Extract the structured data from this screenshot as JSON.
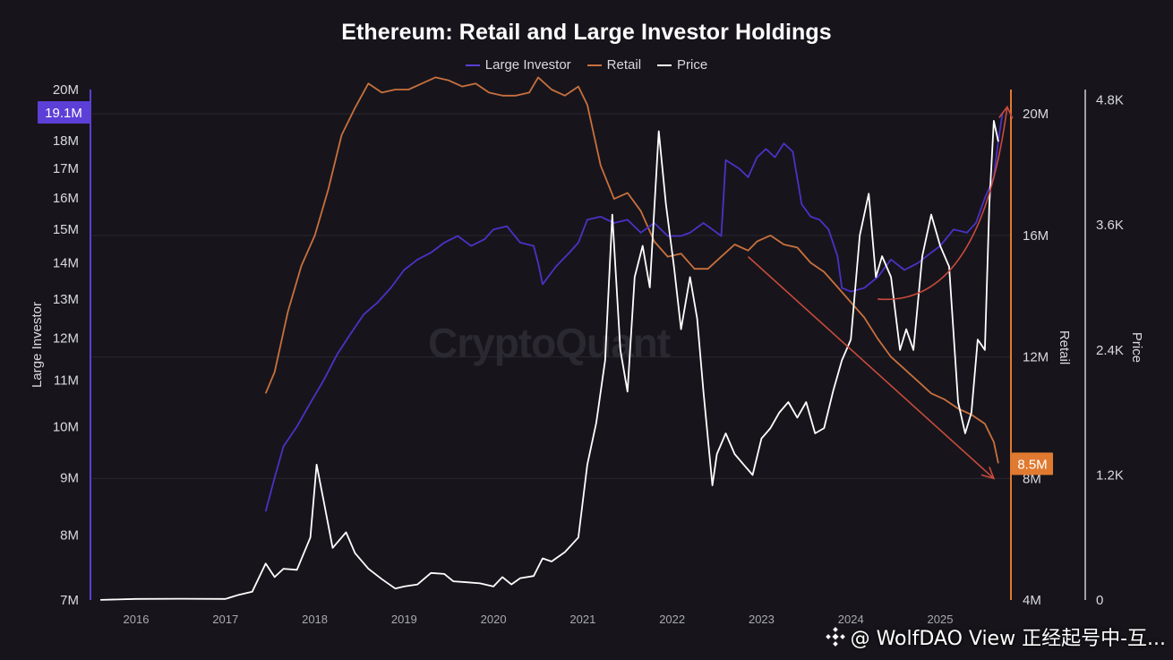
{
  "chart_data": {
    "type": "line",
    "title": "Ethereum: Retail and Large Investor Holdings",
    "legend": [
      {
        "name": "Large Investor",
        "color": "#5b3fd6"
      },
      {
        "name": "Retail",
        "color": "#c8703e"
      },
      {
        "name": "Price",
        "color": "#ffffff"
      }
    ],
    "legend_position": "top-center",
    "watermark": "CryptoQuant",
    "x_ticks": [
      "2016",
      "2017",
      "2018",
      "2019",
      "2020",
      "2021",
      "2022",
      "2023",
      "2024",
      "2025"
    ],
    "axes": {
      "large_investor": {
        "label": "Large Investor",
        "scale": "log",
        "range": [
          7000000,
          20000000
        ],
        "ticks": [
          "7M",
          "8M",
          "9M",
          "10M",
          "11M",
          "12M",
          "13M",
          "14M",
          "15M",
          "16M",
          "17M",
          "18M",
          "20M"
        ],
        "tick_values": [
          7,
          8,
          9,
          10,
          11,
          12,
          13,
          14,
          15,
          16,
          17,
          18,
          20
        ],
        "current_badge": "19.1M",
        "color": "#5b3fd6"
      },
      "retail": {
        "label": "Retail",
        "range": [
          4000000,
          20800000
        ],
        "ticks": [
          "4M",
          "8M",
          "12M",
          "16M",
          "20M"
        ],
        "tick_values": [
          4,
          8,
          12,
          16,
          20
        ],
        "current_badge": "8.5M",
        "color": "#e07a30"
      },
      "price": {
        "label": "Price",
        "range": [
          0,
          4900
        ],
        "ticks": [
          "0",
          "1.2K",
          "2.4K",
          "3.6K",
          "4.8K"
        ],
        "tick_values": [
          0,
          1200,
          2400,
          3600,
          4800
        ]
      }
    },
    "series": [
      {
        "name": "Large Investor",
        "unit": "M",
        "x": [
          2017.45,
          2017.55,
          2017.65,
          2017.8,
          2017.95,
          2018.1,
          2018.25,
          2018.4,
          2018.55,
          2018.7,
          2018.85,
          2019.0,
          2019.15,
          2019.3,
          2019.45,
          2019.6,
          2019.75,
          2019.9,
          2020.0,
          2020.15,
          2020.3,
          2020.45,
          2020.5,
          2020.55,
          2020.7,
          2020.85,
          2020.95,
          2021.05,
          2021.2,
          2021.35,
          2021.5,
          2021.65,
          2021.8,
          2021.95,
          2022.1,
          2022.2,
          2022.35,
          2022.45,
          2022.55,
          2022.6,
          2022.75,
          2022.85,
          2022.95,
          2023.05,
          2023.15,
          2023.25,
          2023.35,
          2023.45,
          2023.55,
          2023.65,
          2023.75,
          2023.85,
          2023.9,
          2024.0,
          2024.15,
          2024.3,
          2024.45,
          2024.6,
          2024.75,
          2024.9,
          2025.0,
          2025.15,
          2025.3,
          2025.4,
          2025.5,
          2025.6,
          2025.65,
          2025.7
        ],
        "values": [
          8.4,
          9.0,
          9.6,
          10.0,
          10.5,
          11.0,
          11.6,
          12.1,
          12.6,
          12.9,
          13.3,
          13.8,
          14.1,
          14.3,
          14.6,
          14.8,
          14.5,
          14.7,
          15.0,
          15.1,
          14.6,
          14.5,
          14.0,
          13.4,
          13.9,
          14.3,
          14.6,
          15.3,
          15.4,
          15.2,
          15.3,
          14.9,
          15.2,
          14.8,
          14.8,
          14.9,
          15.2,
          15.0,
          14.8,
          17.3,
          17.0,
          16.7,
          17.4,
          17.7,
          17.4,
          17.9,
          17.6,
          15.8,
          15.4,
          15.3,
          15.0,
          14.2,
          13.3,
          13.2,
          13.3,
          13.6,
          14.1,
          13.8,
          14.0,
          14.3,
          14.5,
          15.0,
          14.9,
          15.2,
          16.0,
          16.7,
          18.0,
          19.1
        ]
      },
      {
        "name": "Retail",
        "unit": "M",
        "x": [
          2017.45,
          2017.55,
          2017.7,
          2017.85,
          2018.0,
          2018.15,
          2018.3,
          2018.45,
          2018.6,
          2018.75,
          2018.9,
          2019.05,
          2019.2,
          2019.35,
          2019.5,
          2019.65,
          2019.8,
          2019.95,
          2020.1,
          2020.25,
          2020.4,
          2020.5,
          2020.65,
          2020.8,
          2020.95,
          2021.05,
          2021.2,
          2021.35,
          2021.5,
          2021.65,
          2021.8,
          2021.95,
          2022.1,
          2022.25,
          2022.4,
          2022.55,
          2022.7,
          2022.85,
          2022.95,
          2023.1,
          2023.25,
          2023.4,
          2023.55,
          2023.7,
          2023.85,
          2024.0,
          2024.15,
          2024.3,
          2024.45,
          2024.6,
          2024.75,
          2024.9,
          2025.05,
          2025.2,
          2025.35,
          2025.5,
          2025.6,
          2025.65
        ],
        "values": [
          10.8,
          11.5,
          13.5,
          15.0,
          16.0,
          17.5,
          19.3,
          20.2,
          21.0,
          20.7,
          20.8,
          20.8,
          21.0,
          21.2,
          21.1,
          20.9,
          21.0,
          20.7,
          20.6,
          20.6,
          20.7,
          21.2,
          20.8,
          20.6,
          20.9,
          20.3,
          18.3,
          17.2,
          17.4,
          16.8,
          15.8,
          15.3,
          15.4,
          14.9,
          14.9,
          15.3,
          15.7,
          15.5,
          15.8,
          16.0,
          15.7,
          15.6,
          15.1,
          14.8,
          14.3,
          13.8,
          13.3,
          12.6,
          12.0,
          11.6,
          11.2,
          10.8,
          10.6,
          10.3,
          10.1,
          9.8,
          9.2,
          8.5
        ]
      },
      {
        "name": "Price",
        "unit": "USD",
        "x": [
          2015.6,
          2016.0,
          2016.5,
          2017.0,
          2017.15,
          2017.3,
          2017.45,
          2017.55,
          2017.65,
          2017.8,
          2017.95,
          2018.02,
          2018.1,
          2018.2,
          2018.3,
          2018.35,
          2018.45,
          2018.6,
          2018.75,
          2018.9,
          2019.0,
          2019.15,
          2019.3,
          2019.45,
          2019.55,
          2019.7,
          2019.85,
          2020.0,
          2020.1,
          2020.2,
          2020.3,
          2020.45,
          2020.55,
          2020.65,
          2020.8,
          2020.95,
          2021.05,
          2021.15,
          2021.25,
          2021.33,
          2021.42,
          2021.5,
          2021.58,
          2021.67,
          2021.75,
          2021.85,
          2021.93,
          2022.02,
          2022.1,
          2022.2,
          2022.28,
          2022.35,
          2022.45,
          2022.5,
          2022.6,
          2022.7,
          2022.8,
          2022.9,
          2023.0,
          2023.1,
          2023.2,
          2023.3,
          2023.4,
          2023.5,
          2023.6,
          2023.7,
          2023.8,
          2023.9,
          2024.0,
          2024.1,
          2024.2,
          2024.28,
          2024.35,
          2024.45,
          2024.55,
          2024.62,
          2024.7,
          2024.8,
          2024.9,
          2025.0,
          2025.1,
          2025.2,
          2025.28,
          2025.35,
          2025.42,
          2025.5,
          2025.55,
          2025.6,
          2025.65
        ],
        "values": [
          1,
          10,
          12,
          10,
          50,
          80,
          350,
          220,
          300,
          290,
          600,
          1300,
          950,
          500,
          600,
          650,
          450,
          300,
          200,
          110,
          130,
          150,
          260,
          250,
          180,
          170,
          160,
          130,
          220,
          150,
          210,
          230,
          400,
          370,
          460,
          600,
          1300,
          1700,
          2300,
          3700,
          2400,
          2000,
          3100,
          3400,
          3000,
          4500,
          3800,
          3200,
          2600,
          3100,
          2700,
          2000,
          1100,
          1400,
          1600,
          1400,
          1300,
          1200,
          1550,
          1650,
          1800,
          1900,
          1750,
          1900,
          1600,
          1650,
          2000,
          2300,
          2500,
          3500,
          3900,
          3100,
          3300,
          3100,
          2400,
          2600,
          2400,
          3300,
          3700,
          3400,
          3200,
          1900,
          1600,
          1800,
          2500,
          2400,
          3800,
          4600,
          4400
        ]
      }
    ],
    "annotations": [
      {
        "type": "arrow",
        "color": "#c94a3d",
        "from": {
          "x": 2022.85,
          "retail": 15.3
        },
        "to": {
          "x": 2025.6,
          "retail": 8.0
        }
      },
      {
        "type": "arrow",
        "color": "#c94a3d",
        "from": {
          "x": 2024.3,
          "large_investor": 13.0
        },
        "to": {
          "x": 2025.75,
          "large_investor": 19.3
        }
      }
    ]
  },
  "source_tag": "@ WolfDAO View 正经起号中-互..."
}
